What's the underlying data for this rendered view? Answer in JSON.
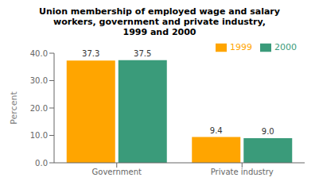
{
  "chart_data": {
    "type": "bar",
    "title": "Union membership of employed wage and salary\nworkers, government and private industry,\n1999 and 2000",
    "categories": [
      "Government",
      "Private industry"
    ],
    "series": [
      {
        "name": "1999",
        "color": "#FFA500",
        "values": [
          37.3,
          9.4
        ],
        "value_labels": [
          "37.3",
          "9.4"
        ]
      },
      {
        "name": "2000",
        "color": "#3A9B7A",
        "values": [
          37.5,
          9.0
        ],
        "value_labels": [
          "37.5",
          "9.0"
        ]
      }
    ],
    "ylabel": "Percent",
    "ylim": [
      0,
      40
    ],
    "yticks": [
      {
        "value": 0.0,
        "label": "0.0"
      },
      {
        "value": 10.0,
        "label": "10.0"
      },
      {
        "value": 20.0,
        "label": "20.0"
      },
      {
        "value": 30.0,
        "label": "30.0"
      },
      {
        "value": 40.0,
        "label": "40.0"
      }
    ],
    "grid": false,
    "legend": "upper right",
    "data_labels": true
  }
}
